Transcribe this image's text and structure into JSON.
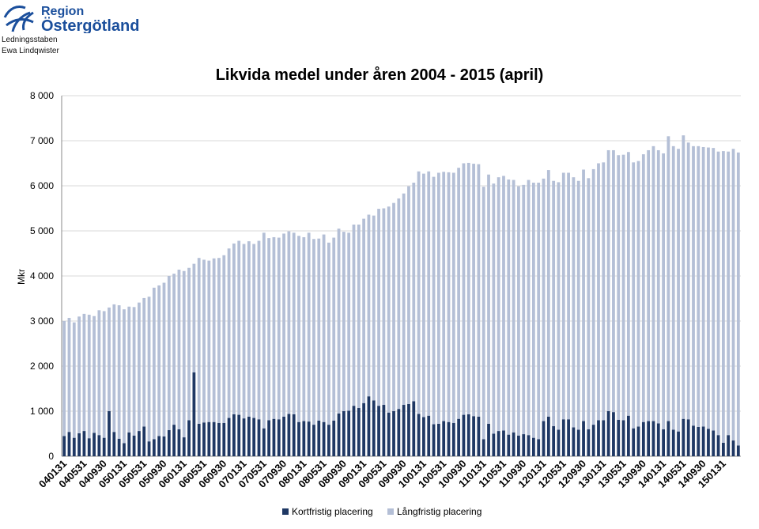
{
  "header": {
    "org_name_line1": "Region",
    "org_name_line2": "Östergötland",
    "dept": "Ledningsstaben",
    "author": "Ewa Lindqwister"
  },
  "colors": {
    "short_term": "#1f3864",
    "long_term": "#b4bfd6",
    "logo": "#1b4f9c"
  },
  "chart_data": {
    "type": "bar",
    "stacked": true,
    "title": "Likvida medel under åren 2004 - 2015 (april)",
    "ylabel": "Mkr",
    "xlabel": "",
    "ylim": [
      0,
      8000
    ],
    "yticks": [
      0,
      1000,
      2000,
      3000,
      4000,
      5000,
      6000,
      7000,
      8000
    ],
    "ytick_labels": [
      "0",
      "1 000",
      "2 000",
      "3 000",
      "4 000",
      "5 000",
      "6 000",
      "7 000",
      "8 000"
    ],
    "xtick_labels": [
      "040131",
      "040531",
      "040930",
      "050131",
      "050531",
      "050930",
      "060131",
      "060531",
      "060930",
      "070131",
      "070531",
      "070930",
      "080131",
      "080531",
      "080930",
      "090131",
      "090531",
      "090930",
      "100131",
      "100531",
      "100930",
      "110131",
      "110531",
      "110930",
      "120131",
      "120531",
      "120930",
      "130131",
      "130531",
      "130930",
      "140131",
      "140531",
      "140930",
      "150131"
    ],
    "grid": true,
    "legend_position": "bottom",
    "series": [
      {
        "name": "Kortfristig placering",
        "values": [
          450,
          540,
          410,
          510,
          560,
          400,
          520,
          470,
          410,
          1000,
          540,
          390,
          290,
          530,
          460,
          560,
          660,
          330,
          380,
          450,
          440,
          580,
          700,
          600,
          420,
          800,
          1860,
          720,
          750,
          760,
          760,
          740,
          740,
          850,
          930,
          920,
          840,
          880,
          850,
          820,
          620,
          800,
          830,
          820,
          880,
          940,
          930,
          760,
          780,
          770,
          700,
          790,
          760,
          700,
          790,
          950,
          1000,
          1010,
          1120,
          1070,
          1180,
          1330,
          1240,
          1120,
          1140,
          970,
          1000,
          1050,
          1140,
          1160,
          1220,
          940,
          870,
          900,
          710,
          720,
          780,
          760,
          740,
          830,
          920,
          930,
          890,
          880,
          380,
          720,
          500,
          560,
          570,
          480,
          530,
          460,
          490,
          470,
          410,
          380,
          780,
          880,
          670,
          590,
          820,
          820,
          640,
          590,
          780,
          600,
          700,
          800,
          800,
          1000,
          980,
          810,
          800,
          900,
          620,
          660,
          760,
          780,
          780,
          730,
          600,
          780,
          590,
          550,
          830,
          820,
          680,
          650,
          660,
          610,
          570,
          470,
          300,
          470,
          350,
          240
        ]
      },
      {
        "name": "Långfristig placering",
        "values": [
          2550,
          2530,
          2560,
          2590,
          2600,
          2740,
          2590,
          2770,
          2810,
          2300,
          2830,
          2960,
          2970,
          2790,
          2850,
          2850,
          2850,
          3210,
          3360,
          3340,
          3410,
          3420,
          3350,
          3540,
          3690,
          3380,
          2410,
          3680,
          3610,
          3580,
          3630,
          3660,
          3720,
          3760,
          3790,
          3860,
          3870,
          3890,
          3860,
          3960,
          4340,
          4040,
          4030,
          4030,
          4060,
          4050,
          4030,
          4130,
          4080,
          4190,
          4120,
          4040,
          4160,
          4040,
          4060,
          4100,
          3980,
          3950,
          4020,
          4070,
          4090,
          4030,
          4100,
          4370,
          4360,
          4570,
          4620,
          4670,
          4690,
          4830,
          4850,
          5380,
          5400,
          5420,
          5490,
          5570,
          5530,
          5540,
          5550,
          5570,
          5580,
          5580,
          5600,
          5600,
          5600,
          5530,
          5550,
          5630,
          5650,
          5660,
          5600,
          5530,
          5530,
          5660,
          5660,
          5690,
          5380,
          5470,
          5440,
          5490,
          5470,
          5470,
          5550,
          5520,
          5580,
          5570,
          5670,
          5700,
          5720,
          5790,
          5810,
          5870,
          5890,
          5850,
          5900,
          5890,
          5940,
          6010,
          6100,
          6060,
          6120,
          6320,
          6290,
          6270,
          6290,
          6140,
          6200,
          6230,
          6200,
          6240,
          6270,
          6290,
          6470,
          6290,
          6470,
          6500
        ]
      }
    ]
  },
  "legend": {
    "items": [
      {
        "label": "Kortfristig placering"
      },
      {
        "label": "Långfristig placering"
      }
    ]
  }
}
